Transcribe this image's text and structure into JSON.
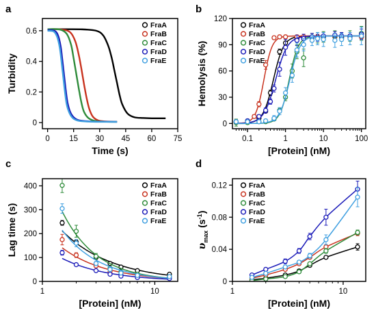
{
  "colors": {
    "FraA": "#000000",
    "FraB": "#c8321e",
    "FraC": "#2e8b3a",
    "FraD": "#1a1ab8",
    "FraE": "#3f9fe0"
  },
  "chart_data": [
    {
      "panel": "a",
      "type": "line",
      "xlabel": "Time (s)",
      "ylabel": "Turbidity",
      "xlim": [
        -3,
        75
      ],
      "ylim": [
        -0.04,
        0.68
      ],
      "xticks": [
        0,
        15,
        30,
        45,
        60,
        75
      ],
      "yticks": [
        0.0,
        0.2,
        0.4,
        0.6
      ],
      "ytick_labels": [
        "0",
        "0.2",
        "0.4",
        "0.6"
      ],
      "legend": "top-right",
      "series": [
        {
          "name": "FraA",
          "x": [
            0,
            10,
            20,
            28,
            32,
            35,
            37,
            38.5,
            40,
            41.5,
            43,
            46,
            50,
            55,
            60,
            68
          ],
          "y": [
            0.61,
            0.61,
            0.609,
            0.6,
            0.57,
            0.5,
            0.42,
            0.34,
            0.26,
            0.18,
            0.12,
            0.06,
            0.035,
            0.03,
            0.028,
            0.028
          ]
        },
        {
          "name": "FraB",
          "x": [
            0,
            8,
            13,
            16,
            18,
            19.5,
            21,
            22.5,
            24,
            26,
            29,
            33,
            40
          ],
          "y": [
            0.61,
            0.608,
            0.59,
            0.53,
            0.44,
            0.35,
            0.25,
            0.16,
            0.09,
            0.04,
            0.015,
            0.008,
            0.006
          ]
        },
        {
          "name": "FraC",
          "x": [
            0,
            7,
            11,
            13.5,
            15,
            16.5,
            18,
            19.5,
            21,
            23.5,
            27,
            33,
            40
          ],
          "y": [
            0.61,
            0.608,
            0.58,
            0.51,
            0.42,
            0.32,
            0.22,
            0.13,
            0.07,
            0.03,
            0.012,
            0.006,
            0.005
          ]
        },
        {
          "name": "FraD",
          "x": [
            0,
            4,
            6,
            7.5,
            8.5,
            9.5,
            10.5,
            11.5,
            13,
            15,
            18,
            24,
            30,
            40
          ],
          "y": [
            0.605,
            0.6,
            0.57,
            0.5,
            0.41,
            0.31,
            0.21,
            0.13,
            0.07,
            0.035,
            0.015,
            0.008,
            0.006,
            0.005
          ]
        },
        {
          "name": "FraE",
          "x": [
            0,
            3.5,
            5.5,
            7,
            8,
            9,
            10,
            11,
            12.5,
            14.5,
            17.5,
            23,
            30,
            40
          ],
          "y": [
            0.6,
            0.595,
            0.56,
            0.49,
            0.4,
            0.3,
            0.2,
            0.12,
            0.065,
            0.03,
            0.013,
            0.007,
            0.005,
            0.005
          ]
        }
      ]
    },
    {
      "panel": "b",
      "type": "scatter",
      "xscale": "log",
      "xlabel": "[Protein] (nM)",
      "ylabel": "Hemolysis (%)",
      "xlim": [
        0.04,
        130
      ],
      "ylim": [
        -6,
        120
      ],
      "xticks": [
        0.1,
        1,
        10,
        100
      ],
      "xtick_labels": [
        "0.1",
        "1",
        "10",
        "100"
      ],
      "yticks": [
        0,
        30,
        60,
        90,
        120
      ],
      "legend": "top-left",
      "series": [
        {
          "name": "FraA",
          "x": [
            0.05,
            0.1,
            0.2,
            0.3,
            0.4,
            0.7,
            1,
            2,
            3,
            5,
            7,
            10,
            20,
            30,
            50,
            100
          ],
          "y": [
            2,
            3,
            6,
            14,
            35,
            82,
            92,
            97,
            98,
            98,
            98,
            99,
            99,
            98,
            99,
            99
          ],
          "err": [
            1,
            1,
            2,
            2,
            3,
            3,
            2,
            2,
            2,
            2,
            2,
            2,
            2,
            2,
            2,
            2
          ],
          "fit_x0": 0.48,
          "fit_n": 3.2
        },
        {
          "name": "FraB",
          "x": [
            0.05,
            0.1,
            0.15,
            0.2,
            0.3,
            0.5,
            0.7,
            1,
            2,
            3,
            5,
            7,
            10,
            20,
            30,
            50,
            100
          ],
          "y": [
            1,
            2,
            8,
            22,
            67,
            98,
            99,
            99,
            99,
            99,
            99,
            99,
            99,
            99,
            99,
            99,
            99
          ],
          "err": [
            1,
            1,
            2,
            3,
            5,
            2,
            2,
            2,
            2,
            2,
            2,
            2,
            2,
            2,
            2,
            2,
            2
          ],
          "fit_x0": 0.27,
          "fit_n": 4.0
        },
        {
          "name": "FraC",
          "x": [
            0.05,
            0.1,
            0.2,
            0.3,
            0.5,
            0.7,
            1,
            1.5,
            2,
            3,
            5,
            7,
            10,
            20,
            30,
            50,
            100
          ],
          "y": [
            1,
            1,
            2,
            2,
            5,
            15,
            30,
            60,
            82,
            75,
            98,
            98,
            99,
            100,
            99,
            100,
            103
          ],
          "err": [
            4,
            2,
            2,
            2,
            2,
            3,
            4,
            8,
            8,
            10,
            5,
            6,
            6,
            6,
            5,
            6,
            8
          ],
          "fit_x0": 1.25,
          "fit_n": 3.6
        },
        {
          "name": "FraD",
          "x": [
            0.05,
            0.1,
            0.2,
            0.3,
            0.4,
            0.5,
            0.7,
            1,
            2,
            3,
            5,
            7,
            10,
            20,
            30,
            50,
            100
          ],
          "y": [
            2,
            3,
            8,
            15,
            25,
            40,
            62,
            87,
            95,
            97,
            99,
            98,
            100,
            101,
            100,
            100,
            102
          ],
          "err": [
            2,
            2,
            2,
            3,
            3,
            4,
            8,
            9,
            6,
            5,
            4,
            4,
            4,
            4,
            4,
            4,
            6
          ],
          "fit_x0": 0.55,
          "fit_n": 2.8
        },
        {
          "name": "FraE",
          "x": [
            0.05,
            0.1,
            0.2,
            0.3,
            0.5,
            0.7,
            1,
            1.5,
            2,
            3,
            5,
            7,
            10,
            20,
            30,
            50,
            100
          ],
          "y": [
            2,
            2,
            2,
            3,
            6,
            14,
            35,
            55,
            84,
            90,
            95,
            97,
            96,
            95,
            96,
            97,
            100
          ],
          "err": [
            2,
            2,
            2,
            2,
            3,
            4,
            6,
            8,
            8,
            7,
            6,
            7,
            8,
            8,
            7,
            7,
            10
          ],
          "fit_x0": 1.3,
          "fit_n": 3.2
        }
      ]
    },
    {
      "panel": "c",
      "type": "scatter",
      "xscale": "log",
      "xlabel": "[Protein] (nM)",
      "ylabel": "Lag time (s)",
      "xlim": [
        1,
        16
      ],
      "ylim": [
        0,
        430
      ],
      "xticks": [
        1,
        10
      ],
      "xtick_labels": [
        "1",
        "10"
      ],
      "yticks": [
        0,
        100,
        200,
        300,
        400
      ],
      "legend": "top-right",
      "series": [
        {
          "name": "FraA",
          "x": [
            1.5,
            2,
            3,
            4,
            5,
            7,
            13.5
          ],
          "y": [
            245,
            165,
            100,
            75,
            60,
            45,
            30
          ],
          "err": [
            10,
            10,
            8,
            6,
            5,
            5,
            6
          ]
        },
        {
          "name": "FraB",
          "x": [
            1.5,
            2,
            3,
            4,
            5,
            7,
            13.5
          ],
          "y": [
            175,
            110,
            65,
            40,
            30,
            22,
            18
          ],
          "err": [
            22,
            10,
            6,
            5,
            4,
            3,
            3
          ]
        },
        {
          "name": "FraC",
          "x": [
            1.5,
            2,
            3,
            4,
            5,
            7,
            13.5
          ],
          "y": [
            402,
            210,
            105,
            55,
            40,
            30,
            20
          ],
          "err": [
            30,
            25,
            12,
            8,
            5,
            4,
            3
          ]
        },
        {
          "name": "FraD",
          "x": [
            1.5,
            2,
            3,
            4,
            5,
            7,
            13.5
          ],
          "y": [
            120,
            70,
            45,
            30,
            22,
            16,
            12
          ],
          "err": [
            10,
            6,
            5,
            4,
            3,
            3,
            2
          ]
        },
        {
          "name": "FraE",
          "x": [
            1.5,
            2,
            3,
            4,
            5,
            7,
            13.5
          ],
          "y": [
            305,
            160,
            75,
            50,
            35,
            25,
            20
          ],
          "err": [
            20,
            15,
            8,
            6,
            5,
            4,
            3
          ]
        }
      ]
    },
    {
      "panel": "d",
      "type": "scatter",
      "xscale": "log",
      "xlabel": "[Protein] (nM)",
      "ylabel": "υmax (s-1)",
      "ylabel_main": "υ",
      "ylabel_sub": "max",
      "ylabel_unit": " (s",
      "ylabel_sup": "-1",
      "ylabel_end": ")",
      "xlim": [
        1,
        16
      ],
      "ylim": [
        0,
        0.128
      ],
      "xticks": [
        1,
        10
      ],
      "xtick_labels": [
        "1",
        "10"
      ],
      "yticks": [
        0,
        0.04,
        0.08,
        0.12
      ],
      "ytick_labels": [
        "0",
        "0.04",
        "0.08",
        "0.12"
      ],
      "legend": "top-left",
      "series": [
        {
          "name": "FraA",
          "x": [
            1.5,
            2,
            3,
            4,
            5,
            7,
            13.5
          ],
          "y": [
            0.002,
            0.004,
            0.008,
            0.013,
            0.02,
            0.03,
            0.043
          ],
          "err": [
            0.001,
            0.001,
            0.001,
            0.002,
            0.002,
            0.002,
            0.004
          ]
        },
        {
          "name": "FraB",
          "x": [
            1.5,
            2,
            3,
            4,
            5,
            7,
            13.5
          ],
          "y": [
            0.004,
            0.008,
            0.015,
            0.022,
            0.03,
            0.043,
            0.06
          ],
          "err": [
            0.001,
            0.001,
            0.002,
            0.002,
            0.002,
            0.003,
            0.003
          ]
        },
        {
          "name": "FraC",
          "x": [
            1.5,
            2,
            3,
            4,
            5,
            7,
            13.5
          ],
          "y": [
            0.001,
            0.003,
            0.006,
            0.012,
            0.022,
            0.038,
            0.061
          ],
          "err": [
            0.001,
            0.001,
            0.001,
            0.002,
            0.002,
            0.003,
            0.003
          ]
        },
        {
          "name": "FraD",
          "x": [
            1.5,
            2,
            3,
            4,
            5,
            7,
            13.5
          ],
          "y": [
            0.008,
            0.015,
            0.025,
            0.038,
            0.056,
            0.08,
            0.115
          ],
          "err": [
            0.001,
            0.002,
            0.003,
            0.003,
            0.004,
            0.01,
            0.01
          ]
        },
        {
          "name": "FraE",
          "x": [
            1.5,
            2,
            3,
            4,
            5,
            7,
            13.5
          ],
          "y": [
            0.005,
            0.01,
            0.018,
            0.024,
            0.032,
            0.052,
            0.105
          ],
          "err": [
            0.001,
            0.001,
            0.002,
            0.002,
            0.003,
            0.006,
            0.012
          ]
        }
      ]
    }
  ]
}
